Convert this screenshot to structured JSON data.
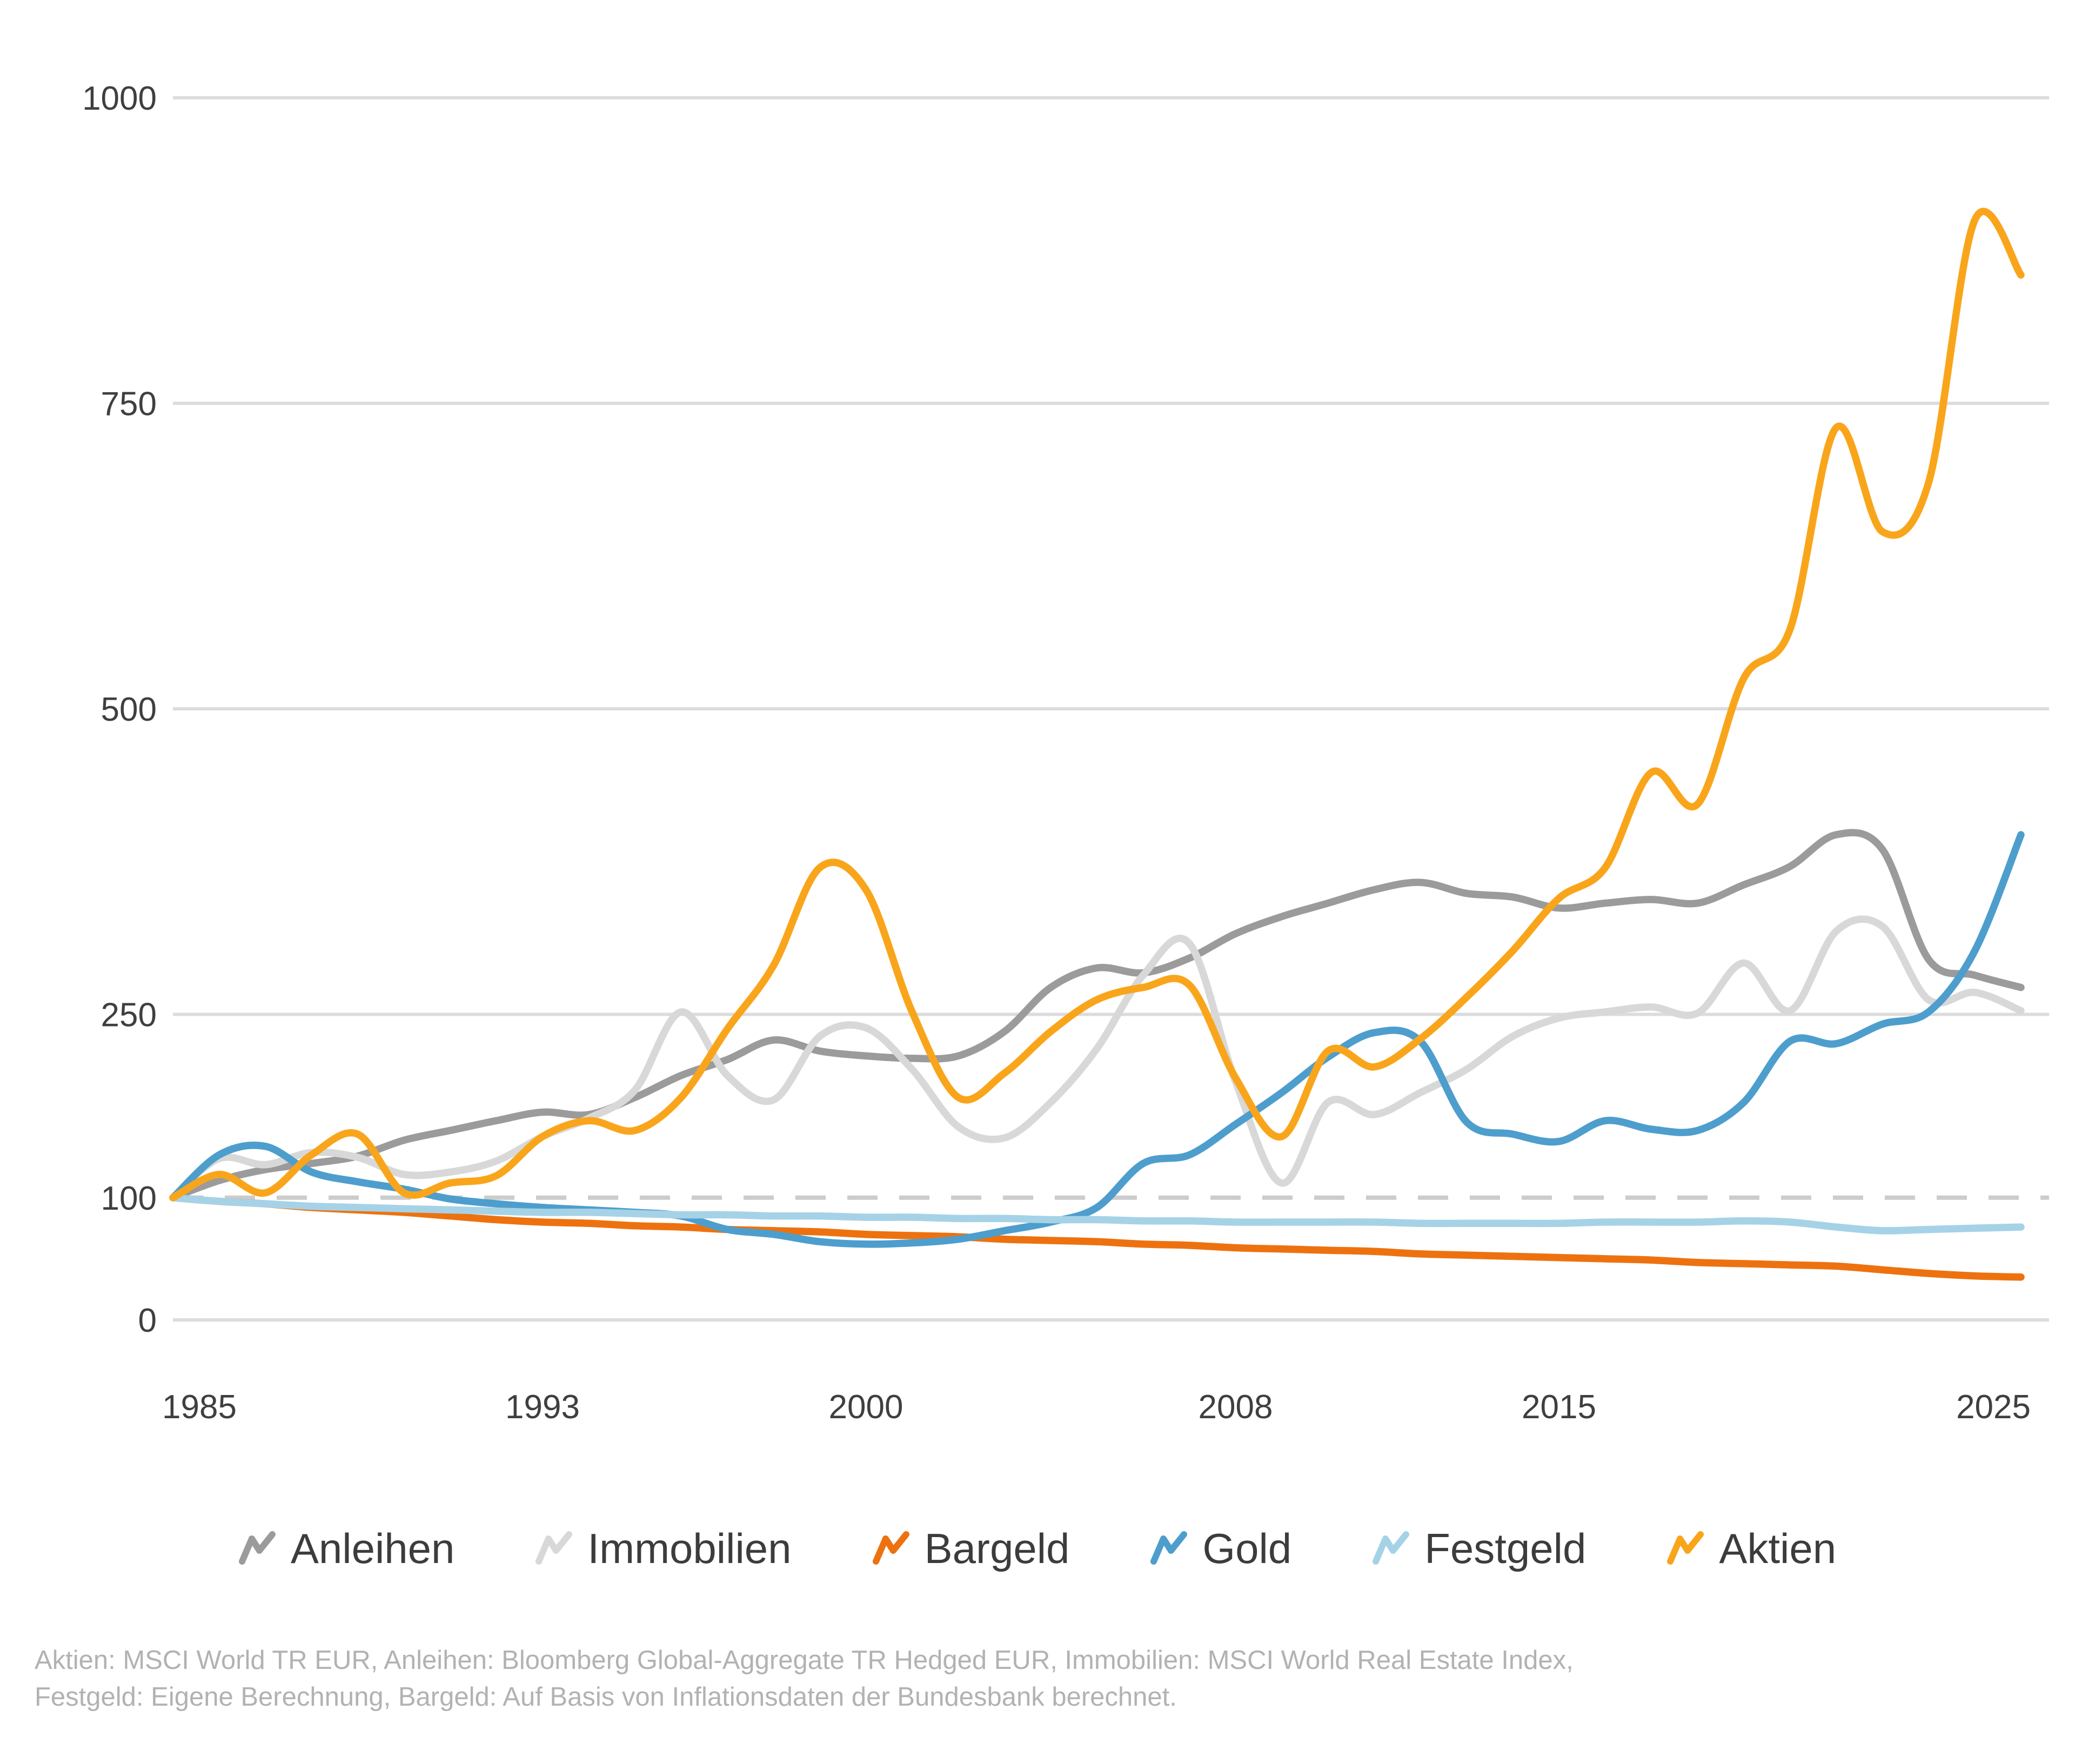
{
  "chart_data": {
    "type": "line",
    "title": "",
    "xlabel": "",
    "ylabel": "",
    "x_range": [
      1985,
      2025
    ],
    "x_ticks": [
      1985,
      1993,
      2000,
      2008,
      2015,
      2025
    ],
    "y_ticks_solid": [
      0,
      250,
      500,
      750,
      1000
    ],
    "y_ticks_dashed": [
      100
    ],
    "ylim": [
      0,
      1070
    ],
    "grid": "horizontal",
    "legend_position": "bottom",
    "years": [
      1985,
      1986,
      1987,
      1988,
      1989,
      1990,
      1991,
      1992,
      1993,
      1994,
      1995,
      1996,
      1997,
      1998,
      1999,
      2000,
      2001,
      2002,
      2003,
      2004,
      2005,
      2006,
      2007,
      2008,
      2009,
      2010,
      2011,
      2012,
      2013,
      2014,
      2015,
      2016,
      2017,
      2018,
      2019,
      2020,
      2021,
      2022,
      2023,
      2024,
      2025
    ],
    "series": [
      {
        "name": "Anleihen",
        "color": "#9b9b9b",
        "values": [
          100,
          114,
          123,
          128,
          134,
          147,
          155,
          163,
          170,
          168,
          182,
          200,
          213,
          229,
          220,
          216,
          214,
          216,
          236,
          272,
          288,
          284,
          296,
          316,
          330,
          341,
          352,
          358,
          349,
          346,
          337,
          341,
          344,
          341,
          356,
          371,
          397,
          385,
          295,
          282,
          272
        ]
      },
      {
        "name": "Immobilien",
        "color": "#d8d8d8",
        "values": [
          100,
          132,
          127,
          137,
          133,
          119,
          121,
          130,
          150,
          165,
          188,
          252,
          200,
          180,
          232,
          239,
          205,
          158,
          149,
          178,
          222,
          282,
          308,
          195,
          112,
          178,
          168,
          186,
          205,
          232,
          247,
          252,
          256,
          251,
          292,
          253,
          318,
          322,
          262,
          268,
          253
        ]
      },
      {
        "name": "Bargeld",
        "color": "#ed720f",
        "values": [
          100,
          97,
          95,
          92,
          90,
          88,
          85,
          82,
          80,
          79,
          77,
          76,
          74,
          73,
          72,
          70,
          69,
          68,
          66,
          65,
          64,
          62,
          61,
          59,
          58,
          57,
          56,
          54,
          53,
          52,
          51,
          50,
          49,
          47,
          46,
          45,
          44,
          41,
          38,
          36,
          35
        ]
      },
      {
        "name": "Gold",
        "color": "#4d9ecd",
        "values": [
          100,
          135,
          142,
          121,
          113,
          107,
          99,
          95,
          92,
          90,
          88,
          85,
          74,
          70,
          64,
          62,
          63,
          66,
          73,
          80,
          92,
          128,
          135,
          160,
          186,
          215,
          235,
          228,
          162,
          152,
          146,
          163,
          156,
          155,
          178,
          228,
          226,
          242,
          252,
          302,
          397
        ]
      },
      {
        "name": "Festgeld",
        "color": "#a6d2e7",
        "values": [
          100,
          97,
          95,
          93,
          92,
          91,
          90,
          89,
          88,
          88,
          87,
          86,
          86,
          85,
          85,
          84,
          84,
          83,
          83,
          82,
          82,
          81,
          81,
          80,
          80,
          80,
          80,
          79,
          79,
          79,
          79,
          80,
          80,
          80,
          81,
          80,
          76,
          73,
          74,
          75,
          76
        ]
      },
      {
        "name": "Aktien",
        "color": "#f9a51b",
        "values": [
          100,
          119,
          104,
          135,
          152,
          104,
          112,
          118,
          150,
          163,
          155,
          182,
          238,
          290,
          370,
          352,
          252,
          182,
          202,
          236,
          262,
          272,
          274,
          198,
          150,
          220,
          207,
          230,
          264,
          302,
          345,
          370,
          448,
          422,
          525,
          565,
          730,
          645,
          685,
          900,
          855
        ]
      }
    ],
    "footnote_line1": "Aktien: MSCI World TR EUR, Anleihen: Bloomberg Global-Aggregate TR Hedged EUR, Immobilien: MSCI World Real Estate Index,",
    "footnote_line2": "Festgeld: Eigene Berechnung, Bargeld: Auf Basis von Inflationsdaten der Bundesbank berechnet."
  },
  "style": {
    "grid_color": "#dcdcdc",
    "dashed_color": "#cccccc",
    "axis_text_color": "#3f3f3f",
    "footnote_color": "#b2b2b2",
    "legend_text_color": "#3c3c3c"
  }
}
